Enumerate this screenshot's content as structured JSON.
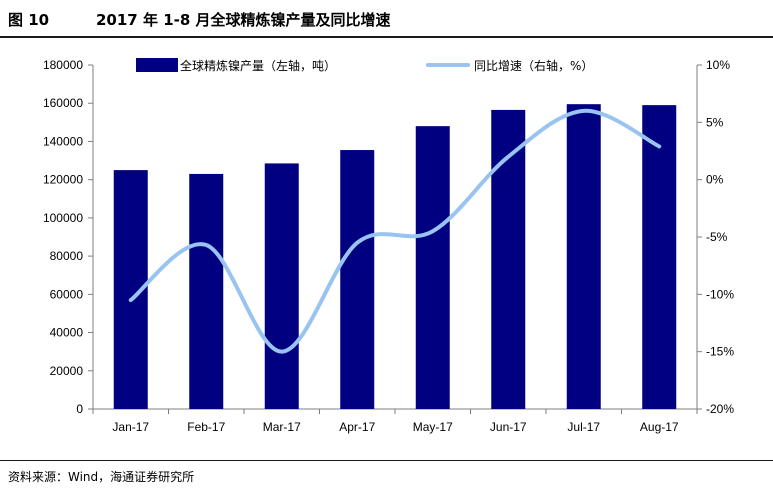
{
  "figure": {
    "number": "图 10",
    "title": "2017 年 1-8 月全球精炼镍产量及同比增速"
  },
  "source": "资料来源：Wind，海通证券研究所",
  "colors": {
    "bar": "#000080",
    "line": "#99c3f0",
    "axis": "#7f7f7f"
  },
  "chart_data": {
    "type": "bar",
    "categories": [
      "Jan-17",
      "Feb-17",
      "Mar-17",
      "Apr-17",
      "May-17",
      "Jun-17",
      "Jul-17",
      "Aug-17"
    ],
    "series": [
      {
        "name": "全球精炼镍产量（左轴，吨）",
        "type": "bar",
        "axis": "left",
        "values": [
          125000,
          123000,
          128500,
          135500,
          148000,
          156500,
          159500,
          159000
        ]
      },
      {
        "name": "同比增速（右轴，%）",
        "type": "line",
        "axis": "right",
        "smooth": true,
        "values": [
          -10.5,
          -5.7,
          -15.0,
          -5.5,
          -4.5,
          2.0,
          6.0,
          2.9
        ]
      }
    ],
    "y_left": {
      "lim": [
        0,
        180000
      ],
      "ticks": [
        "0",
        "20000",
        "40000",
        "60000",
        "80000",
        "100000",
        "120000",
        "140000",
        "160000",
        "180000"
      ]
    },
    "y_right": {
      "lim": [
        -20,
        10
      ],
      "ticks": [
        "-20%",
        "-15%",
        "-10%",
        "-5%",
        "0%",
        "5%",
        "10%"
      ]
    },
    "legend_position": "top",
    "grid": false
  }
}
